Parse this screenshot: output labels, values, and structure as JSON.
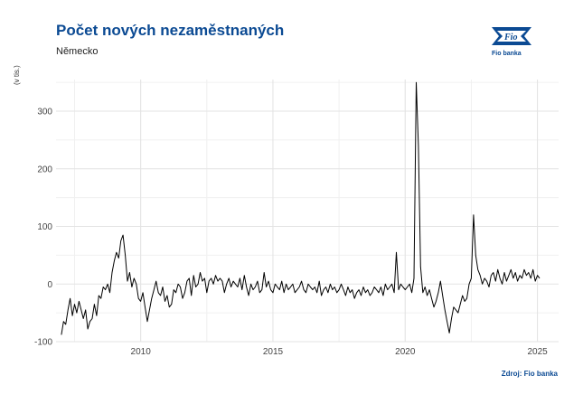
{
  "header": {
    "title": "Počet nových nezaměstnaných",
    "subtitle": "Německo",
    "logo_text": "Fio banka",
    "source": "Zdroj: Fio banka"
  },
  "icons": {
    "logo": "fio-logo-icon"
  },
  "colors": {
    "title": "#0b4a93",
    "line": "#000000",
    "grid": "#e3e3e3"
  },
  "chart_data": {
    "type": "line",
    "title": "Počet nových nezaměstnaných",
    "subtitle": "Německo",
    "ylabel": "(v tis.)",
    "xlabel": "",
    "xlim": [
      2006.8,
      2025.8
    ],
    "ylim": [
      -100,
      355
    ],
    "x_ticks": [
      2010,
      2015,
      2020,
      2025
    ],
    "y_ticks": [
      -100,
      0,
      100,
      200,
      300
    ],
    "grid": true,
    "legend": "none",
    "series": [
      {
        "x": [
          2007.0,
          2007.083,
          2007.167,
          2007.25,
          2007.333,
          2007.417,
          2007.5,
          2007.583,
          2007.667,
          2007.75,
          2007.833,
          2007.917,
          2008.0,
          2008.083,
          2008.167,
          2008.25,
          2008.333,
          2008.417,
          2008.5,
          2008.583,
          2008.667,
          2008.75,
          2008.833,
          2008.917,
          2009.0,
          2009.083,
          2009.167,
          2009.25,
          2009.333,
          2009.417,
          2009.5,
          2009.583,
          2009.667,
          2009.75,
          2009.833,
          2009.917,
          2010.0,
          2010.083,
          2010.167,
          2010.25,
          2010.333,
          2010.417,
          2010.5,
          2010.583,
          2010.667,
          2010.75,
          2010.833,
          2010.917,
          2011.0,
          2011.083,
          2011.167,
          2011.25,
          2011.333,
          2011.417,
          2011.5,
          2011.583,
          2011.667,
          2011.75,
          2011.833,
          2011.917,
          2012.0,
          2012.083,
          2012.167,
          2012.25,
          2012.333,
          2012.417,
          2012.5,
          2012.583,
          2012.667,
          2012.75,
          2012.833,
          2012.917,
          2013.0,
          2013.083,
          2013.167,
          2013.25,
          2013.333,
          2013.417,
          2013.5,
          2013.583,
          2013.667,
          2013.75,
          2013.833,
          2013.917,
          2014.0,
          2014.083,
          2014.167,
          2014.25,
          2014.333,
          2014.417,
          2014.5,
          2014.583,
          2014.667,
          2014.75,
          2014.833,
          2014.917,
          2015.0,
          2015.083,
          2015.167,
          2015.25,
          2015.333,
          2015.417,
          2015.5,
          2015.583,
          2015.667,
          2015.75,
          2015.833,
          2015.917,
          2016.0,
          2016.083,
          2016.167,
          2016.25,
          2016.333,
          2016.417,
          2016.5,
          2016.583,
          2016.667,
          2016.75,
          2016.833,
          2016.917,
          2017.0,
          2017.083,
          2017.167,
          2017.25,
          2017.333,
          2017.417,
          2017.5,
          2017.583,
          2017.667,
          2017.75,
          2017.833,
          2017.917,
          2018.0,
          2018.083,
          2018.167,
          2018.25,
          2018.333,
          2018.417,
          2018.5,
          2018.583,
          2018.667,
          2018.75,
          2018.833,
          2018.917,
          2019.0,
          2019.083,
          2019.167,
          2019.25,
          2019.333,
          2019.417,
          2019.5,
          2019.583,
          2019.667,
          2019.75,
          2019.833,
          2019.917,
          2020.0,
          2020.083,
          2020.167,
          2020.25,
          2020.333,
          2020.417,
          2020.5,
          2020.583,
          2020.667,
          2020.75,
          2020.833,
          2020.917,
          2021.0,
          2021.083,
          2021.167,
          2021.25,
          2021.333,
          2021.417,
          2021.5,
          2021.583,
          2021.667,
          2021.75,
          2021.833,
          2021.917,
          2022.0,
          2022.083,
          2022.167,
          2022.25,
          2022.333,
          2022.417,
          2022.5,
          2022.583,
          2022.667,
          2022.75,
          2022.833,
          2022.917,
          2023.0,
          2023.083,
          2023.167,
          2023.25,
          2023.333,
          2023.417,
          2023.5,
          2023.583,
          2023.667,
          2023.75,
          2023.833,
          2023.917,
          2024.0,
          2024.083,
          2024.167,
          2024.25,
          2024.333,
          2024.417,
          2024.5,
          2024.583,
          2024.667,
          2024.75,
          2024.833,
          2024.917,
          2025.0,
          2025.083
        ],
        "y": [
          -88,
          -65,
          -70,
          -45,
          -25,
          -55,
          -35,
          -50,
          -30,
          -45,
          -60,
          -45,
          -78,
          -65,
          -60,
          -35,
          -55,
          -20,
          -25,
          -5,
          -10,
          0,
          -15,
          20,
          40,
          55,
          45,
          75,
          85,
          50,
          5,
          20,
          -5,
          10,
          0,
          -25,
          -30,
          -15,
          -40,
          -65,
          -45,
          -25,
          -10,
          5,
          -15,
          -20,
          -5,
          -30,
          -20,
          -40,
          -35,
          -10,
          -15,
          0,
          -5,
          -25,
          -15,
          5,
          10,
          -20,
          15,
          -5,
          0,
          20,
          5,
          10,
          -15,
          5,
          10,
          0,
          15,
          5,
          10,
          5,
          -15,
          0,
          10,
          -5,
          5,
          0,
          -5,
          10,
          -10,
          15,
          -5,
          -20,
          0,
          -10,
          -5,
          5,
          -15,
          -10,
          20,
          -5,
          5,
          -10,
          -15,
          0,
          -5,
          -10,
          5,
          -15,
          0,
          -10,
          -5,
          0,
          -15,
          -10,
          -5,
          5,
          -10,
          -15,
          0,
          -5,
          -10,
          -5,
          -15,
          5,
          -20,
          -10,
          -5,
          -15,
          0,
          -10,
          -5,
          -15,
          -10,
          0,
          -10,
          -20,
          -5,
          -15,
          -10,
          -25,
          -15,
          -10,
          -20,
          -5,
          -15,
          -10,
          -20,
          -15,
          -5,
          -10,
          -15,
          -5,
          -20,
          0,
          -10,
          -5,
          0,
          -15,
          55,
          -10,
          0,
          -5,
          -10,
          -5,
          0,
          -15,
          10,
          350,
          240,
          30,
          -15,
          -5,
          -20,
          -10,
          -25,
          -40,
          -30,
          -15,
          5,
          -20,
          -45,
          -65,
          -85,
          -60,
          -40,
          -45,
          -50,
          -35,
          -20,
          -30,
          -25,
          0,
          10,
          120,
          50,
          25,
          15,
          0,
          10,
          5,
          -5,
          15,
          20,
          5,
          25,
          10,
          0,
          20,
          5,
          15,
          25,
          10,
          20,
          5,
          15,
          10,
          25,
          15,
          20,
          10,
          25,
          5,
          15,
          10
        ]
      }
    ]
  }
}
